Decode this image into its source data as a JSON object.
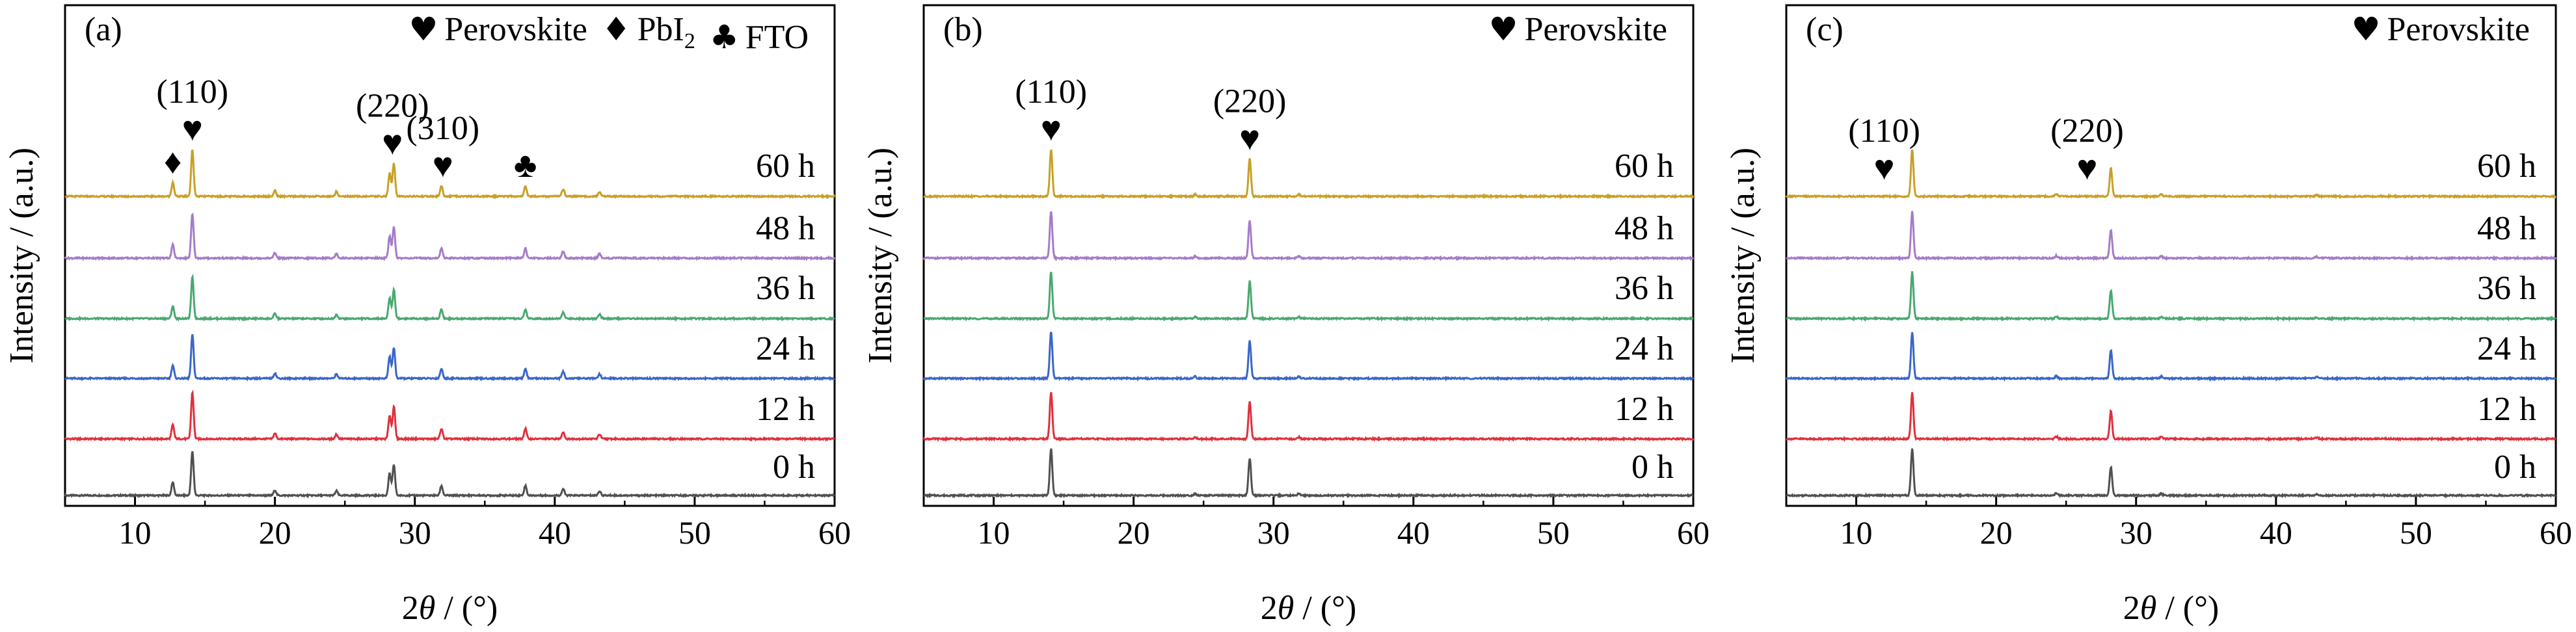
{
  "chart_data": [
    {
      "type": "line",
      "panel_label": "(a)",
      "xlabel_prefix": "2",
      "xlabel_symbol": "θ",
      "xlabel_suffix": " / (°)",
      "ylabel": "Intensity / (a.u.)",
      "xlim": [
        5,
        60
      ],
      "x_ticks": [
        10,
        20,
        30,
        40,
        50,
        60
      ],
      "legend": [
        {
          "glyph": "♥",
          "text": "Perovskite"
        },
        {
          "glyph": "♦",
          "text": "PbI",
          "sub": "2"
        },
        {
          "glyph": "♣",
          "text": "FTO"
        }
      ],
      "annotations": [
        {
          "label": "(110)",
          "glyph": "♥",
          "x": 14.1
        },
        {
          "label": "(220)",
          "glyph": "♥",
          "x": 28.4
        },
        {
          "label": "(310)",
          "glyph": "♥",
          "x": 32.0
        },
        {
          "label": "",
          "glyph": "♦",
          "x": 12.7
        },
        {
          "label": "",
          "glyph": "♣",
          "x": 37.9
        }
      ],
      "peaks": [
        {
          "x": 12.7,
          "h": 0.3
        },
        {
          "x": 14.1,
          "h": 1.0
        },
        {
          "x": 20.0,
          "h": 0.12
        },
        {
          "x": 24.4,
          "h": 0.1
        },
        {
          "x": 28.2,
          "h": 0.5
        },
        {
          "x": 28.5,
          "h": 0.7
        },
        {
          "x": 31.9,
          "h": 0.22
        },
        {
          "x": 37.9,
          "h": 0.22
        },
        {
          "x": 40.6,
          "h": 0.15
        },
        {
          "x": 43.2,
          "h": 0.1
        }
      ],
      "series": [
        {
          "name": "0 h",
          "color": "#505050",
          "scale": 0.85
        },
        {
          "name": "12 h",
          "color": "#e0303c",
          "scale": 0.9
        },
        {
          "name": "24 h",
          "color": "#3a66c8",
          "scale": 0.85
        },
        {
          "name": "36 h",
          "color": "#4aa870",
          "scale": 0.8
        },
        {
          "name": "48 h",
          "color": "#a47cc8",
          "scale": 0.85
        },
        {
          "name": "60 h",
          "color": "#c8a028",
          "scale": 0.9
        }
      ]
    },
    {
      "type": "line",
      "panel_label": "(b)",
      "xlabel_prefix": "2",
      "xlabel_symbol": "θ",
      "xlabel_suffix": " / (°)",
      "ylabel": "Intensity / (a.u.)",
      "xlim": [
        5,
        60
      ],
      "x_ticks": [
        10,
        20,
        30,
        40,
        50,
        60
      ],
      "legend": [
        {
          "glyph": "♥",
          "text": "Perovskite"
        }
      ],
      "annotations": [
        {
          "label": "(110)",
          "glyph": "♥",
          "x": 14.1
        },
        {
          "label": "(220)",
          "glyph": "♥",
          "x": 28.3
        }
      ],
      "peaks": [
        {
          "x": 14.1,
          "h": 1.0
        },
        {
          "x": 28.3,
          "h": 0.8
        },
        {
          "x": 24.4,
          "h": 0.04
        },
        {
          "x": 31.8,
          "h": 0.04
        }
      ],
      "series": [
        {
          "name": "0 h",
          "color": "#505050",
          "scale": 0.9
        },
        {
          "name": "12 h",
          "color": "#e0303c",
          "scale": 0.9
        },
        {
          "name": "24 h",
          "color": "#3a66c8",
          "scale": 0.9
        },
        {
          "name": "36 h",
          "color": "#4aa870",
          "scale": 0.9
        },
        {
          "name": "48 h",
          "color": "#a47cc8",
          "scale": 0.9
        },
        {
          "name": "60 h",
          "color": "#c8a028",
          "scale": 0.9
        }
      ]
    },
    {
      "type": "line",
      "panel_label": "(c)",
      "xlabel_prefix": "2",
      "xlabel_symbol": "θ",
      "xlabel_suffix": " / (°)",
      "ylabel": "Intensity / (a.u.)",
      "xlim": [
        5,
        60
      ],
      "x_ticks": [
        10,
        20,
        30,
        40,
        50,
        60
      ],
      "legend": [
        {
          "glyph": "♥",
          "text": "Perovskite"
        }
      ],
      "annotations": [
        {
          "label": "(110)",
          "glyph": "♥",
          "x": 12.0
        },
        {
          "label": "(220)",
          "glyph": "♥",
          "x": 26.5
        }
      ],
      "peaks": [
        {
          "x": 14.0,
          "h": 1.0
        },
        {
          "x": 28.2,
          "h": 0.6
        },
        {
          "x": 24.3,
          "h": 0.05
        },
        {
          "x": 31.8,
          "h": 0.04
        },
        {
          "x": 42.9,
          "h": 0.03
        }
      ],
      "series": [
        {
          "name": "0 h",
          "color": "#505050",
          "scale": 0.9
        },
        {
          "name": "12 h",
          "color": "#e0303c",
          "scale": 0.9
        },
        {
          "name": "24 h",
          "color": "#3a66c8",
          "scale": 0.9
        },
        {
          "name": "36 h",
          "color": "#4aa870",
          "scale": 0.9
        },
        {
          "name": "48 h",
          "color": "#a47cc8",
          "scale": 0.9
        },
        {
          "name": "60 h",
          "color": "#c8a028",
          "scale": 0.9
        }
      ]
    }
  ]
}
